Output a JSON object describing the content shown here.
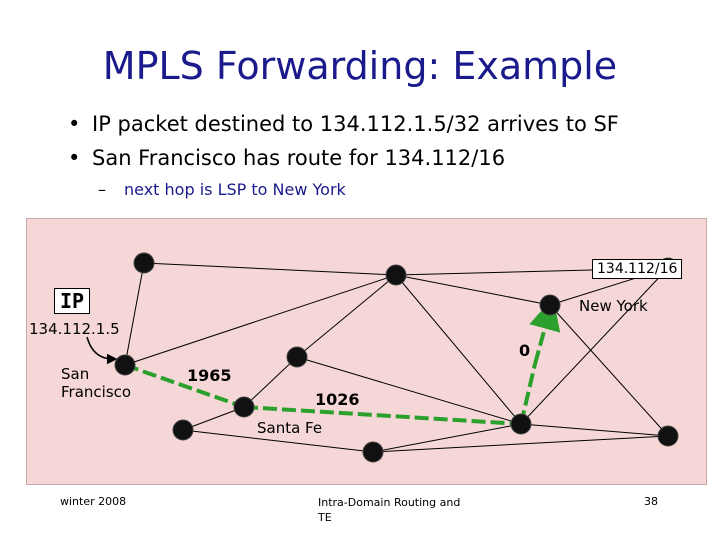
{
  "slide": {
    "title": "MPLS Forwarding: Example",
    "bullets": [
      "IP packet destined to 134.112.1.5/32 arrives to SF",
      "San Francisco has route for 134.112/16"
    ],
    "sub_bullet": "next hop is LSP to New York",
    "bullet_marker": "•",
    "sub_marker": "–"
  },
  "diagram": {
    "destination_prefix": "134.112/16",
    "packet_header": "IP",
    "packet_address": "134.112.1.5",
    "nodes": {
      "san_francisco": "San Francisco",
      "santa_fe": "Santa Fe",
      "new_york": "New York"
    },
    "labels": {
      "first_hop": "1965",
      "second_hop": "1026",
      "last_hop": "0"
    },
    "colors": {
      "background": "#f5d7d7",
      "path": "#2ca02c",
      "node": "#111111"
    }
  },
  "footer": {
    "left": "winter 2008",
    "center": "Intra-Domain Routing and TE",
    "page": "38"
  }
}
